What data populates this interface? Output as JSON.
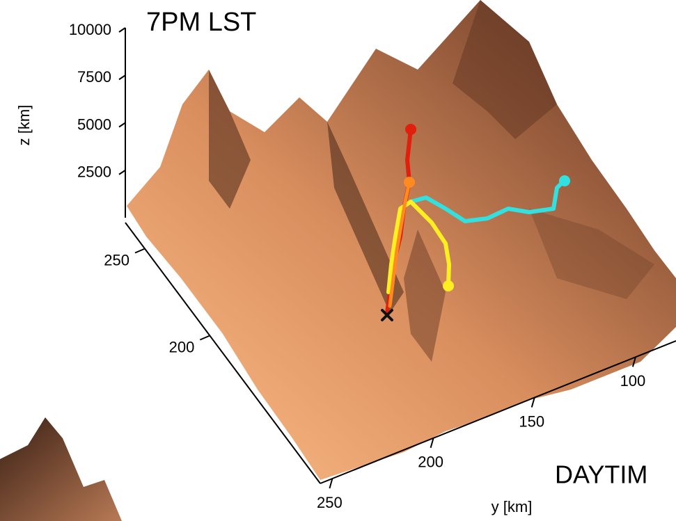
{
  "chart_data": {
    "type": "surface",
    "title": "7PM LST",
    "zlabel": "z [km]",
    "ylabel": "y [km]",
    "zlim": [
      0,
      10000
    ],
    "zticks": [
      2500,
      5000,
      7500,
      10000
    ],
    "xlim": [
      265,
      115
    ],
    "xticks": [
      250,
      200
    ],
    "ylim": [
      256,
      80
    ],
    "yticks": [
      250,
      200,
      150,
      100
    ]
  },
  "next_panel_title": "DAYTIM"
}
